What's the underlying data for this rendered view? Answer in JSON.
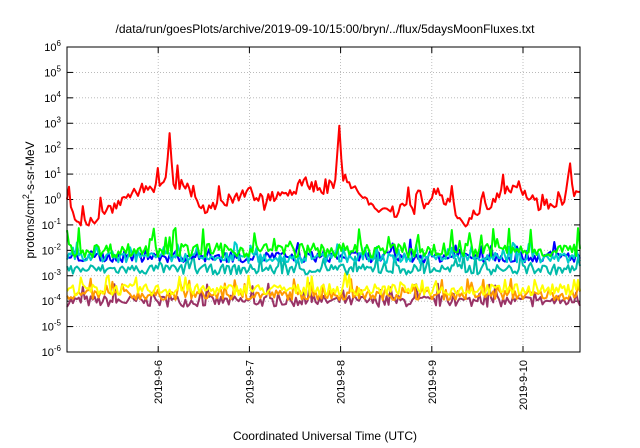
{
  "chart_data": {
    "type": "line",
    "title": "/data/run/goesPlots/archive/2019-09-10/15:00/bryn/../flux/5daysMoonFluxes.txt",
    "xlabel": "Coordinated Universal Time (UTC)",
    "ylabel_base": "protons/cm",
    "ylabel_sup": "2",
    "ylabel_rest": "-s-sr-MeV",
    "yscale": "log",
    "ylim": [
      1e-06,
      1000000.0
    ],
    "y_ticks": [
      {
        "base": "10",
        "exp": "-6"
      },
      {
        "base": "10",
        "exp": "-5"
      },
      {
        "base": "10",
        "exp": "-4"
      },
      {
        "base": "10",
        "exp": "-3"
      },
      {
        "base": "10",
        "exp": "-2"
      },
      {
        "base": "10",
        "exp": "-1"
      },
      {
        "base": "10",
        "exp": "0"
      },
      {
        "base": "10",
        "exp": "1"
      },
      {
        "base": "10",
        "exp": "2"
      },
      {
        "base": "10",
        "exp": "3"
      },
      {
        "base": "10",
        "exp": "4"
      },
      {
        "base": "10",
        "exp": "5"
      },
      {
        "base": "10",
        "exp": "6"
      }
    ],
    "xlim": [
      "2019-09-05T00:00",
      "2019-09-10T15:00"
    ],
    "x_ticks": [
      "2019-9-6",
      "2019-9-7",
      "2019-9-8",
      "2019-9-9",
      "2019-9-10"
    ],
    "grid": true,
    "series": [
      {
        "color": "#ff0000",
        "base_log10": 0.1,
        "noise": 0.25,
        "profile": [
          [
            0.0,
            -0.3
          ],
          [
            0.03,
            -1.0
          ],
          [
            0.06,
            -0.8
          ],
          [
            0.1,
            -0.2
          ],
          [
            0.14,
            0.3
          ],
          [
            0.18,
            0.4
          ],
          [
            0.2,
            0.6
          ],
          [
            0.22,
            0.45
          ],
          [
            0.24,
            0.3
          ],
          [
            0.26,
            -0.3
          ],
          [
            0.28,
            -0.5
          ],
          [
            0.32,
            -0.1
          ],
          [
            0.36,
            0.2
          ],
          [
            0.38,
            -0.5
          ],
          [
            0.4,
            0.0
          ],
          [
            0.45,
            0.4
          ],
          [
            0.47,
            0.6
          ],
          [
            0.5,
            0.2
          ],
          [
            0.53,
            0.8
          ],
          [
            0.55,
            0.6
          ],
          [
            0.57,
            0.1
          ],
          [
            0.6,
            -0.6
          ],
          [
            0.62,
            -0.3
          ],
          [
            0.64,
            -0.6
          ],
          [
            0.66,
            -0.2
          ],
          [
            0.68,
            -0.5
          ],
          [
            0.7,
            -0.2
          ],
          [
            0.72,
            0.2
          ],
          [
            0.74,
            -0.1
          ],
          [
            0.76,
            -0.6
          ],
          [
            0.78,
            -1.0
          ],
          [
            0.8,
            -0.6
          ],
          [
            0.82,
            -0.4
          ],
          [
            0.84,
            0.2
          ],
          [
            0.86,
            0.4
          ],
          [
            0.88,
            0.5
          ],
          [
            0.9,
            0.0
          ],
          [
            0.92,
            -0.3
          ],
          [
            0.94,
            -0.3
          ],
          [
            0.96,
            -0.2
          ],
          [
            0.98,
            0.3
          ],
          [
            1.0,
            0.0
          ]
        ],
        "spikes": [
          [
            0.2,
            2.0
          ],
          [
            0.53,
            2.2
          ],
          [
            0.98,
            1.0
          ]
        ]
      },
      {
        "color": "#00ff00",
        "base_log10": -2.0,
        "noise": 0.28,
        "profile": [],
        "spikes": []
      },
      {
        "color": "#00cccc",
        "base_log10": -2.3,
        "noise": 0.2,
        "profile": [],
        "spikes": []
      },
      {
        "color": "#0000ff",
        "base_log10": -2.25,
        "noise": 0.22,
        "profile": [],
        "spikes": []
      },
      {
        "color": "#00bbaa",
        "base_log10": -2.75,
        "noise": 0.2,
        "profile": [],
        "spikes": []
      },
      {
        "color": "#ffff00",
        "base_log10": -3.55,
        "noise": 0.22,
        "profile": [],
        "spikes": []
      },
      {
        "color": "#ff9900",
        "base_log10": -3.75,
        "noise": 0.2,
        "profile": [],
        "spikes": []
      },
      {
        "color": "#993366",
        "base_log10": -4.0,
        "noise": 0.22,
        "profile": [],
        "spikes": []
      }
    ]
  }
}
